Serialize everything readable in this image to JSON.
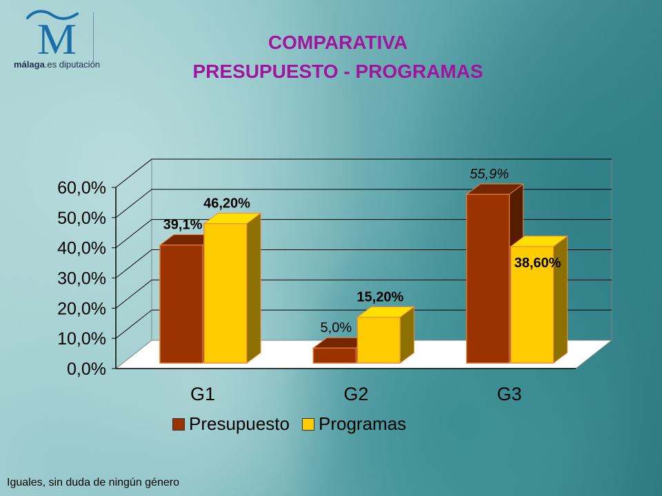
{
  "logo": {
    "brand": "málaga",
    "suffix": ".es diputación"
  },
  "title": {
    "line1": "COMPARATIVA",
    "line2": "PRESUPUESTO - PROGRAMAS"
  },
  "chart_data": {
    "type": "bar",
    "categories": [
      "G1",
      "G2",
      "G3"
    ],
    "series": [
      {
        "name": "Presupuesto",
        "values": [
          39.1,
          5.0,
          55.9
        ],
        "labels": [
          "39,1%",
          "5,0%",
          "55,9%"
        ],
        "color": "#9a3300"
      },
      {
        "name": "Programas",
        "values": [
          46.2,
          15.2,
          38.6
        ],
        "labels": [
          "46,20%",
          "15,20%",
          "38,60%"
        ],
        "color": "#ffcc00"
      }
    ],
    "ylim": [
      0,
      60
    ],
    "yticks": [
      0,
      10,
      20,
      30,
      40,
      50,
      60
    ],
    "ytick_labels": [
      "0,0%",
      "10,0%",
      "20,0%",
      "30,0%",
      "40,0%",
      "50,0%",
      "60,0%"
    ],
    "grid": true,
    "legend": "bottom"
  },
  "footer": {
    "caption": "Iguales, sin duda de ningún género"
  }
}
